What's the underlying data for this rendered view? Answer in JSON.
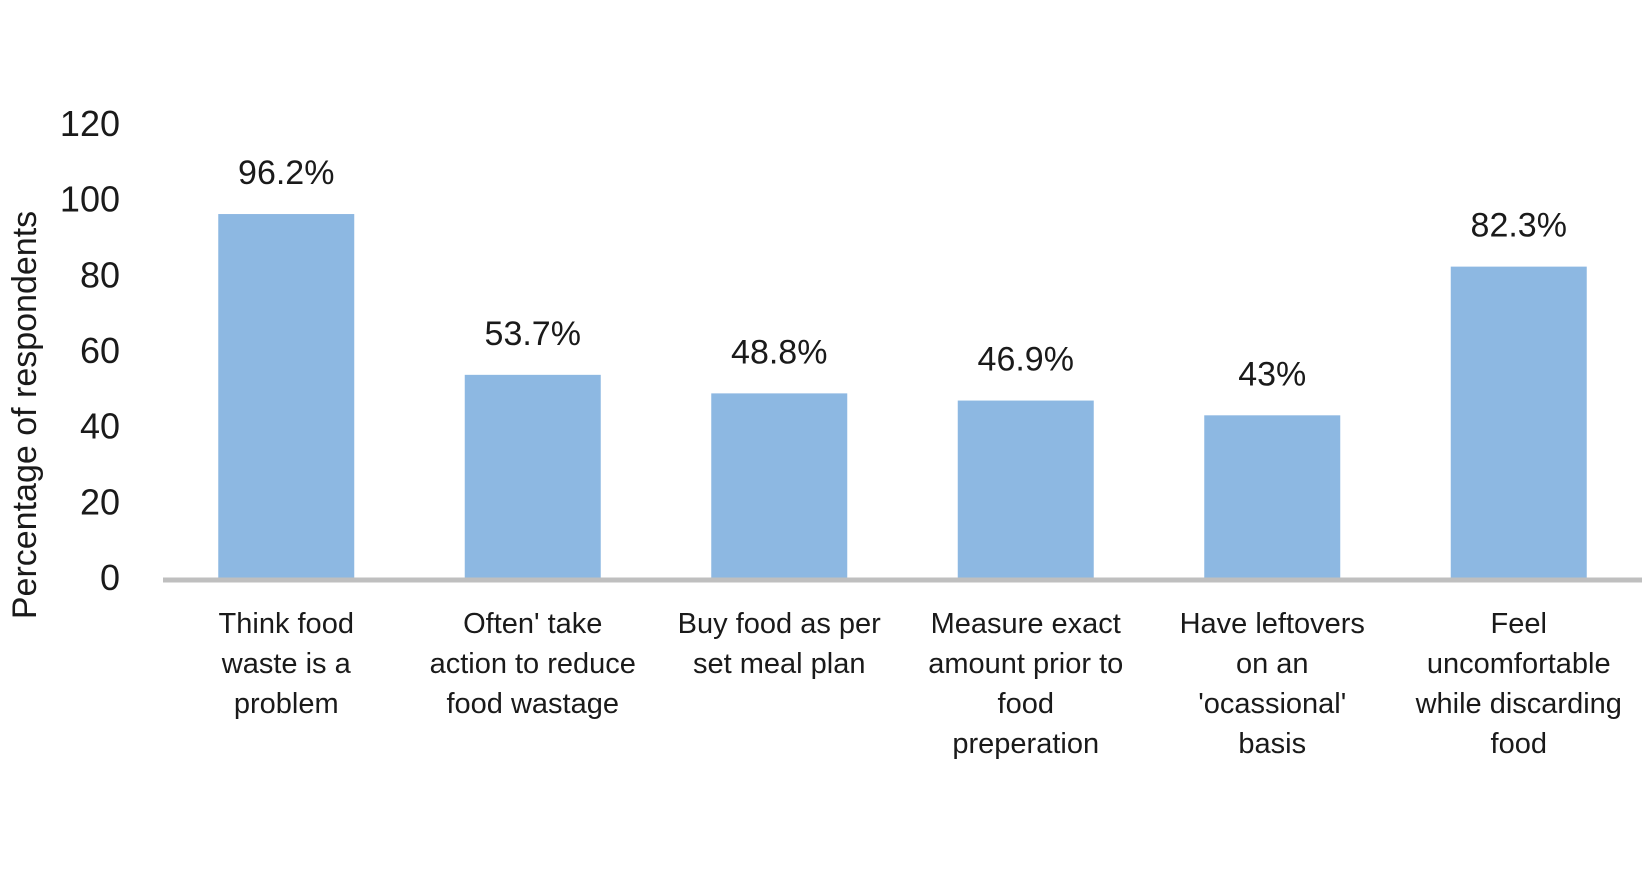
{
  "chart_data": {
    "type": "bar",
    "title": "",
    "xlabel": "",
    "ylabel": "Percentage of respondents",
    "ylim": [
      0,
      120
    ],
    "yticks": [
      0,
      20,
      40,
      60,
      80,
      100,
      120
    ],
    "grid": false,
    "categories": [
      [
        "Think food",
        "waste is a",
        "problem"
      ],
      [
        "Often' take",
        "action to reduce",
        "food wastage"
      ],
      [
        "Buy food as per",
        "set meal plan"
      ],
      [
        "Measure exact",
        "amount prior to",
        "food",
        "preperation"
      ],
      [
        "Have leftovers",
        "on an",
        "'ocassional'",
        "basis"
      ],
      [
        "Feel",
        "uncomfortable",
        "while discarding",
        "food"
      ]
    ],
    "values": [
      96.2,
      53.7,
      48.8,
      46.9,
      43,
      82.3
    ],
    "data_labels": [
      "96.2%",
      "53.7%",
      "48.8%",
      "46.9%",
      "43%",
      "82.3%"
    ],
    "colors": {
      "bar": "#8DB8E2",
      "axis": "#BFBFBF"
    }
  }
}
